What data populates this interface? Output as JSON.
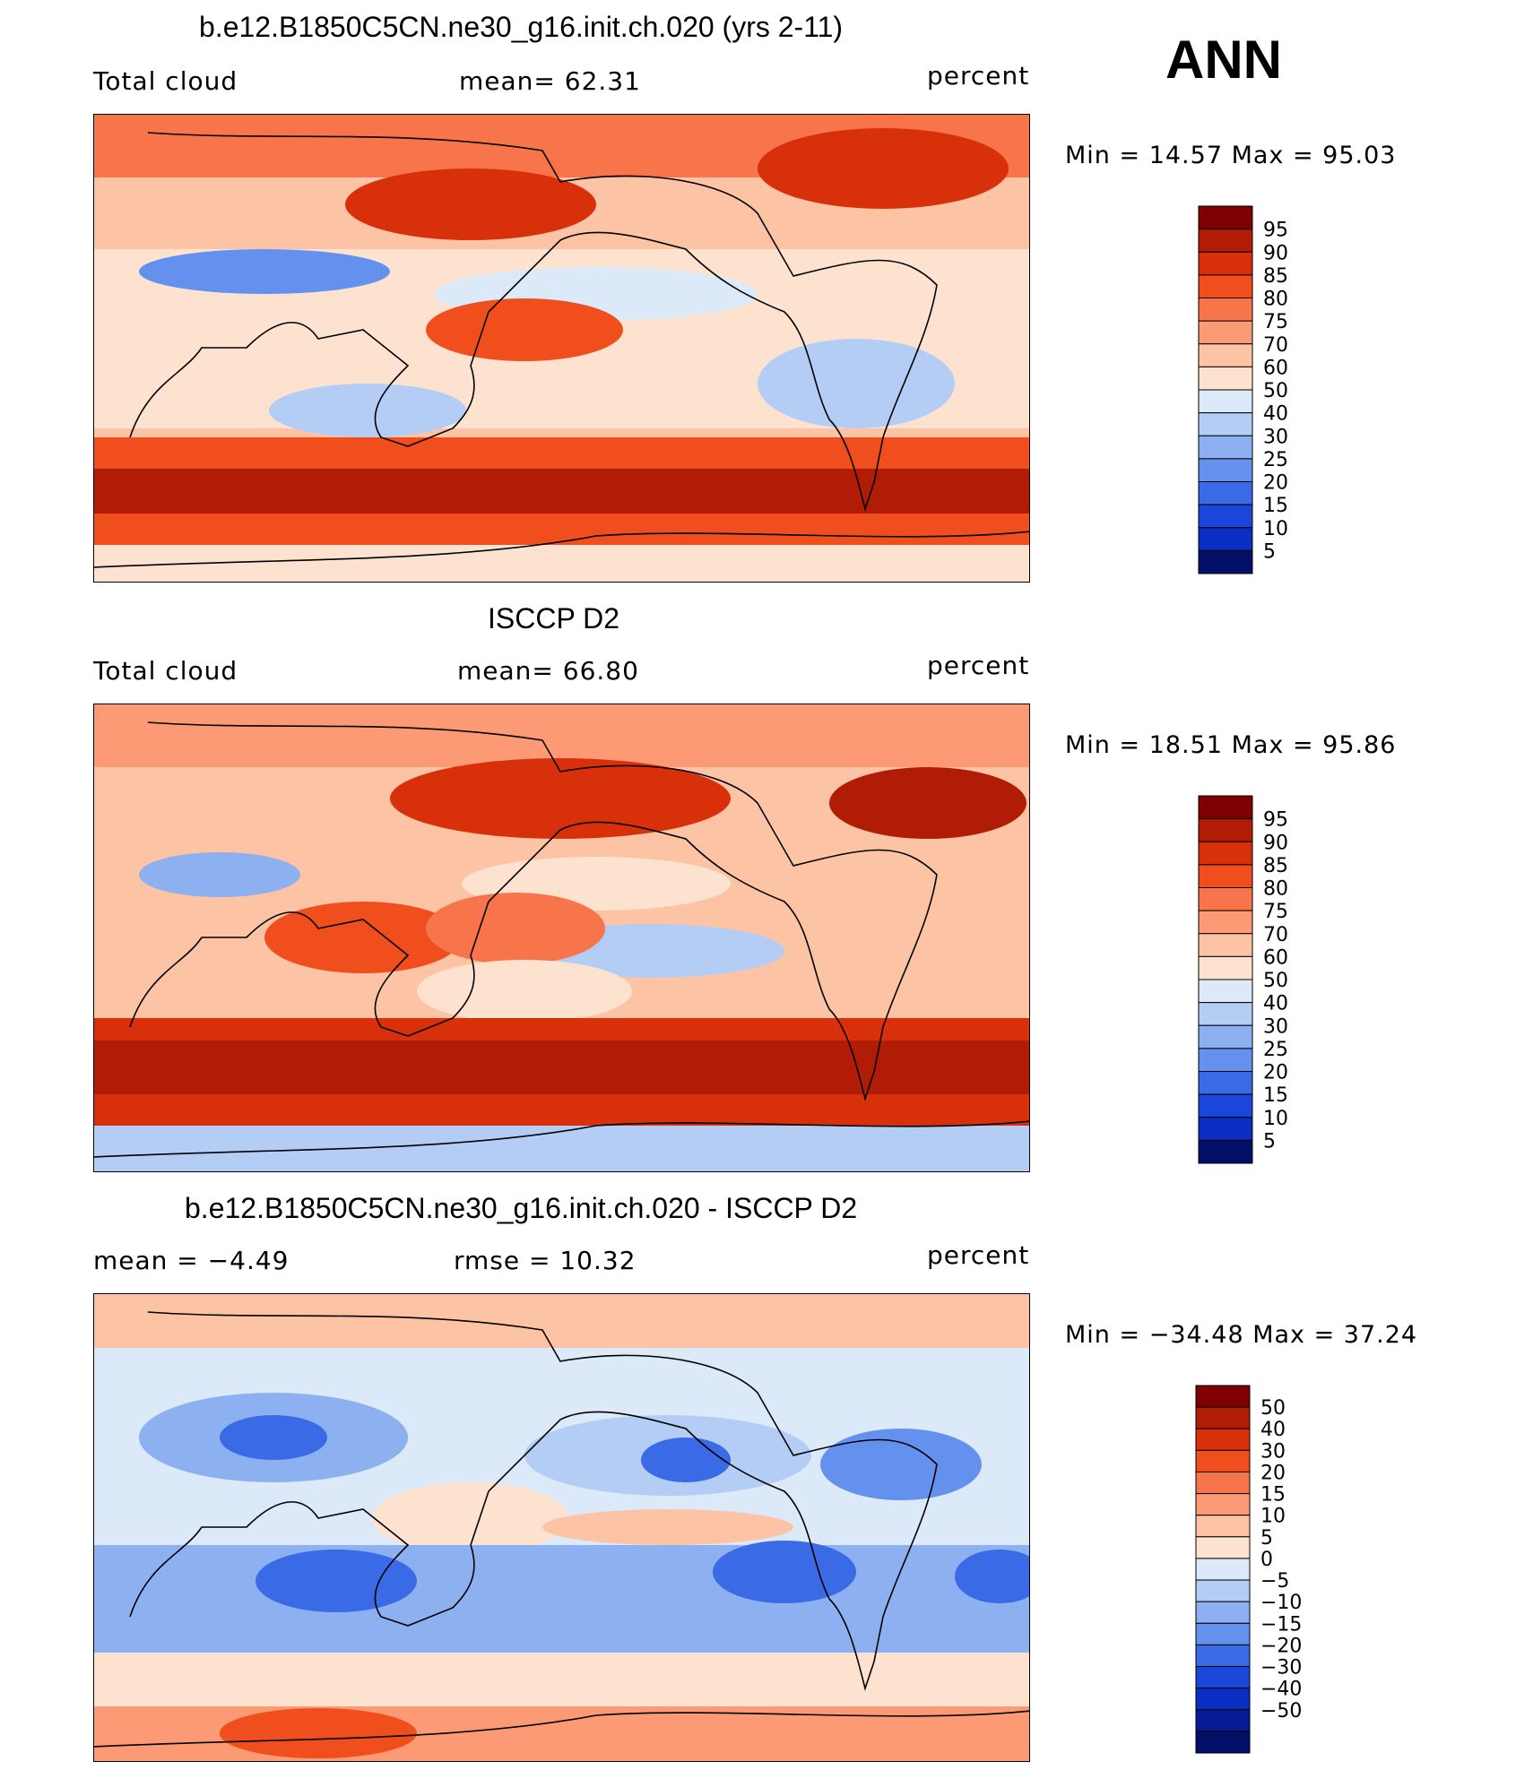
{
  "season": "ANN",
  "panels": [
    {
      "id": "model",
      "title": "b.e12.B1850C5CN.ne30_g16.init.ch.020 (yrs 2-11)",
      "left_label": "Total cloud",
      "center_label": "mean=   62.31",
      "units": "percent",
      "minmax": "Min =   14.57 Max =   95.03",
      "colorbar_labels": [
        "95",
        "90",
        "85",
        "80",
        "75",
        "70",
        "60",
        "50",
        "40",
        "30",
        "25",
        "20",
        "15",
        "10",
        "5"
      ]
    },
    {
      "id": "obs",
      "title": "ISCCP D2",
      "left_label": "Total cloud",
      "center_label": "mean=   66.80",
      "units": "percent",
      "minmax": "Min =   18.51 Max =   95.86",
      "colorbar_labels": [
        "95",
        "90",
        "85",
        "80",
        "75",
        "70",
        "60",
        "50",
        "40",
        "30",
        "25",
        "20",
        "15",
        "10",
        "5"
      ]
    },
    {
      "id": "diff",
      "title": "b.e12.B1850C5CN.ne30_g16.init.ch.020 - ISCCP D2",
      "left_label": "mean =   −4.49",
      "center_label": "rmse =   10.32",
      "units": "percent",
      "minmax": "Min = −34.48 Max =   37.24",
      "colorbar_labels": [
        "50",
        "40",
        "30",
        "20",
        "15",
        "10",
        "5",
        "0",
        "−5",
        "−10",
        "−15",
        "−20",
        "−30",
        "−40",
        "−50"
      ]
    }
  ],
  "colors": {
    "scale": [
      "#7f0000",
      "#b01c06",
      "#d9300c",
      "#f04e1c",
      "#f8744a",
      "#fb9a74",
      "#fdc3a5",
      "#fde3cf",
      "#dbe9f8",
      "#b3cdf5",
      "#8cb0f0",
      "#6591ee",
      "#3a6ae6",
      "#1a47da",
      "#0a2ec2",
      "#051c96",
      "#020f66"
    ],
    "model_cbar": [
      "#7f0000",
      "#b01c06",
      "#d9300c",
      "#f04e1c",
      "#f8744a",
      "#fb9a74",
      "#fdc3a5",
      "#fde3cf",
      "#dbe9f8",
      "#b3cdf5",
      "#8cb0f0",
      "#6591ee",
      "#3a6ae6",
      "#1a47da",
      "#0a2ec2",
      "#020f66"
    ]
  }
}
